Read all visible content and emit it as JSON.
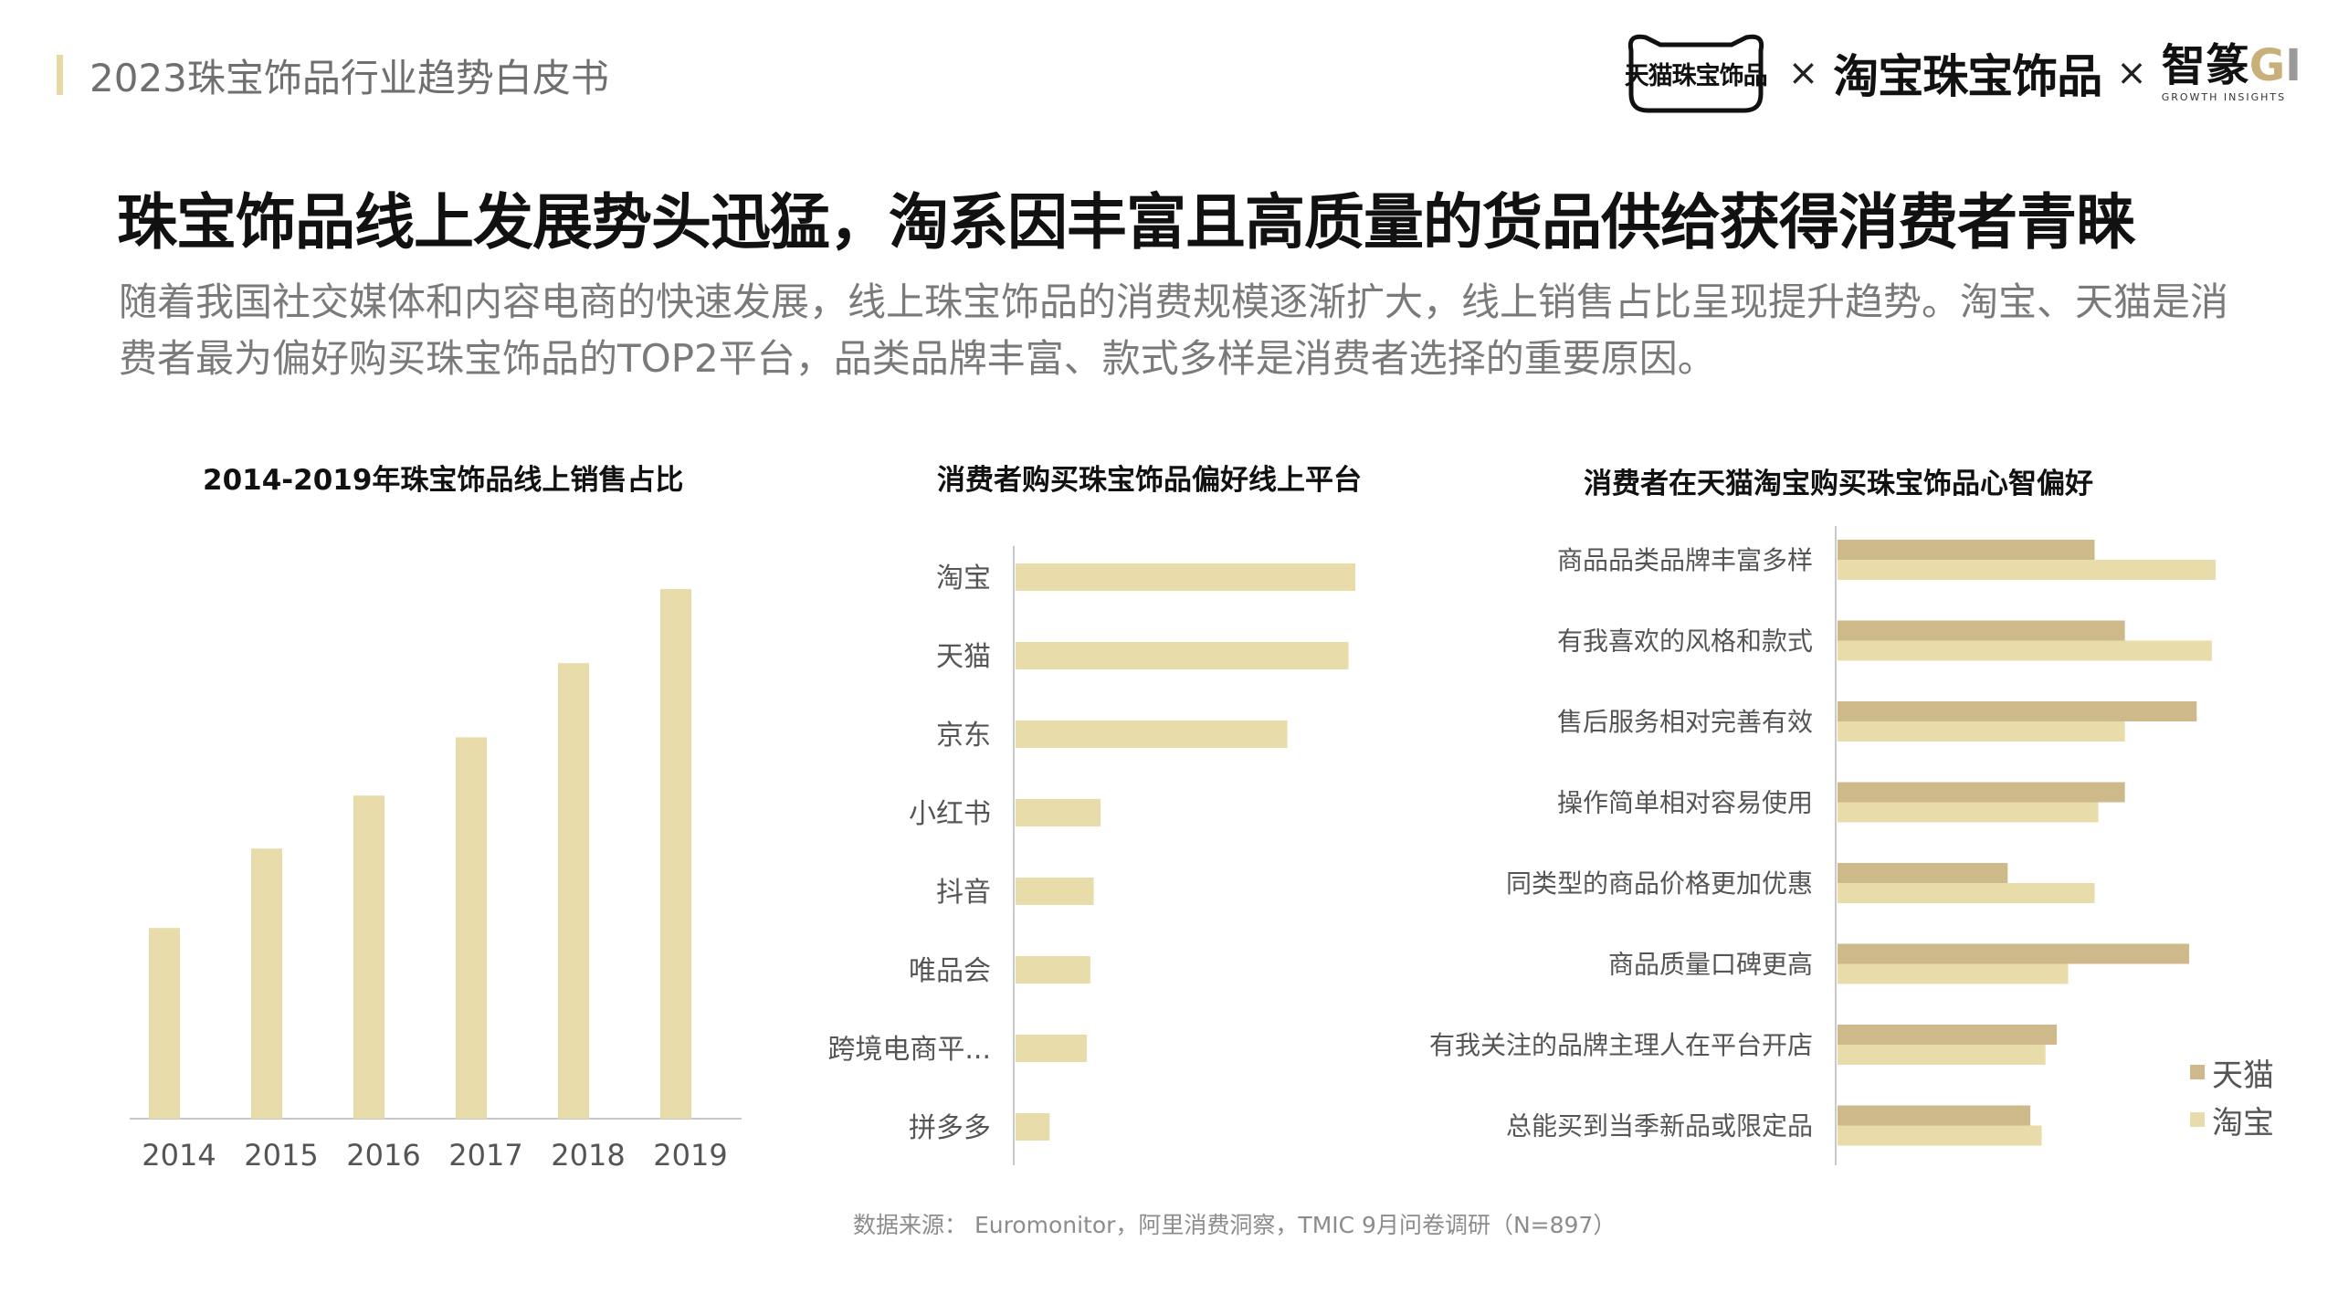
{
  "header": {
    "report_title": "2023珠宝饰品行业趋势白皮书",
    "logo_tmall": "天猫珠宝饰品",
    "logo_sep": "×",
    "logo_taobao": "淘宝珠宝饰品",
    "logo_gi_prefix": "智篆",
    "logo_gi_g": "G",
    "logo_gi_i": "I",
    "logo_gi_sub": "GROWTH INSIGHTS"
  },
  "headline": "珠宝饰品线上发展势头迅猛，淘系因丰富且高质量的货品供给获得消费者青睐",
  "description": "随着我国社交媒体和内容电商的快速发展，线上珠宝饰品的消费规模逐渐扩大，线上销售占比呈现提升趋势。淘宝、天猫是消费者最为偏好购买珠宝饰品的TOP2平台，品类品牌丰富、款式多样是消费者选择的重要原因。",
  "colors": {
    "light_bar": "#e8dcab",
    "dark_bar": "#cdb98a",
    "axis": "#c8c8c8"
  },
  "chart_data": [
    {
      "type": "bar",
      "title": "2014-2019年珠宝饰品线上销售占比",
      "categories": [
        "2014",
        "2015",
        "2016",
        "2017",
        "2018",
        "2019"
      ],
      "values": [
        36,
        51,
        61,
        72,
        86,
        100
      ],
      "ylim": [
        0,
        100
      ],
      "grid": false
    },
    {
      "type": "bar",
      "orientation": "horizontal",
      "title": "消费者购买珠宝饰品偏好线上平台",
      "categories": [
        "淘宝",
        "天猫",
        "京东",
        "小红书",
        "抖音",
        "唯品会",
        "跨境电商平...",
        "拼多多"
      ],
      "values": [
        100,
        98,
        80,
        25,
        23,
        22,
        21,
        10
      ],
      "xlim": [
        0,
        100
      ],
      "grid": false
    },
    {
      "type": "bar",
      "orientation": "horizontal",
      "title": "消费者在天猫淘宝购买珠宝饰品心智偏好",
      "categories": [
        "商品品类品牌丰富多样",
        "有我喜欢的风格和款式",
        "售后服务相对完善有效",
        "操作简单相对容易使用",
        "同类型的商品价格更加优惠",
        "商品质量口碑更高",
        "有我关注的品牌主理人在平台开店",
        "总能买到当季新品或限定品"
      ],
      "series": [
        {
          "name": "天猫",
          "color": "#cdb98a",
          "values": [
            68,
            76,
            95,
            76,
            45,
            93,
            58,
            51
          ]
        },
        {
          "name": "淘宝",
          "color": "#e8dcab",
          "values": [
            100,
            99,
            76,
            69,
            68,
            61,
            55,
            54
          ]
        }
      ],
      "xlim": [
        0,
        100
      ],
      "legend": "bottom-right",
      "grid": false
    }
  ],
  "source": "数据来源： Euromonitor，阿里消费洞察，TMIC 9月问卷调研（N=897）"
}
